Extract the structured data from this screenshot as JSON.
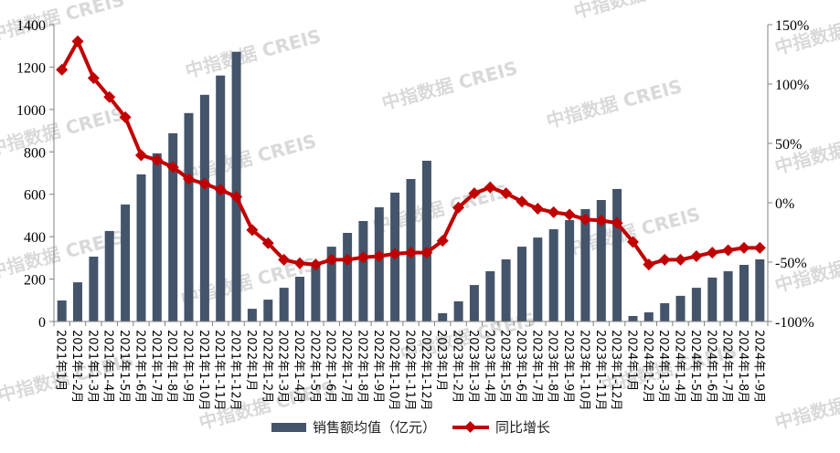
{
  "watermark": "中指数据 CREIS",
  "colors": {
    "bar": "#44546a",
    "line": "#c00000",
    "axis": "#808080"
  },
  "chart_data": {
    "type": "bar+line",
    "title": "",
    "xlabel": "",
    "ylabel": "",
    "y2label": "",
    "ylim": [
      0,
      1400
    ],
    "y2lim": [
      -100,
      150
    ],
    "yticks": [
      "0",
      "200",
      "400",
      "600",
      "800",
      "1000",
      "1200",
      "1400"
    ],
    "y2ticks": [
      "-100%",
      "-50%",
      "0%",
      "50%",
      "100%",
      "150%"
    ],
    "grid": false,
    "legend_position": "bottom",
    "categories": [
      "2021年1月",
      "2021年1-2月",
      "2021年1-3月",
      "2021年1-4月",
      "2021年1-5月",
      "2021年1-6月",
      "2021年1-7月",
      "2021年1-8月",
      "2021年1-9月",
      "2021年1-10月",
      "2021年1-11月",
      "2021年1-12月",
      "2022年1月",
      "2022年1-2月",
      "2022年1-3月",
      "2022年1-4月",
      "2022年1-5月",
      "2022年1-6月",
      "2022年1-7月",
      "2022年1-8月",
      "2022年1-9月",
      "2022年1-10月",
      "2022年1-11月",
      "2022年1-12月",
      "2023年1月",
      "2023年1-2月",
      "2023年1-3月",
      "2023年1-4月",
      "2023年1-5月",
      "2023年1-6月",
      "2023年1-7月",
      "2023年1-8月",
      "2023年1-9月",
      "2023年1-10月",
      "2023年1-11月",
      "2023年1-12月",
      "2024年1月",
      "2024年1-2月",
      "2024年1-3月",
      "2024年1-4月",
      "2024年1-5月",
      "2024年1-6月",
      "2024年1-7月",
      "2024年1-8月",
      "2024年1-9月"
    ],
    "series": [
      {
        "name": "销售额均值（亿元）",
        "type": "bar",
        "axis": "left",
        "values": [
          99,
          185,
          306,
          427,
          552,
          694,
          793,
          888,
          983,
          1069,
          1160,
          1272,
          60,
          103,
          159,
          211,
          267,
          353,
          418,
          474,
          539,
          608,
          672,
          758,
          39,
          95,
          172,
          237,
          293,
          353,
          396,
          435,
          478,
          530,
          573,
          625,
          26,
          43,
          86,
          121,
          159,
          207,
          237,
          267,
          293
        ]
      },
      {
        "name": "同比增长",
        "type": "line",
        "axis": "right",
        "unit": "%",
        "values": [
          112,
          136,
          105,
          89,
          72,
          40,
          36,
          30,
          20,
          16,
          11,
          5,
          -23,
          -34,
          -48,
          -51,
          -52,
          -48,
          -48,
          -46,
          -45,
          -43,
          -42,
          -42,
          -32,
          -4,
          8,
          13,
          8,
          1,
          -5,
          -8,
          -10,
          -14,
          -15,
          -17,
          -33,
          -52,
          -48,
          -48,
          -45,
          -42,
          -40,
          -38,
          -38
        ]
      }
    ]
  },
  "legend": {
    "bar_label": "销售额均值（亿元）",
    "line_label": "同比增长"
  }
}
